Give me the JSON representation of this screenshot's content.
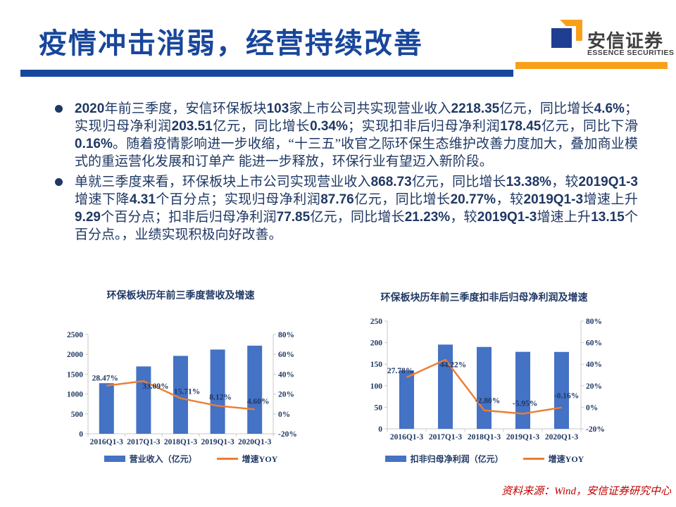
{
  "header": {
    "title": "疫情冲击消弱，经营持续改善",
    "logo": {
      "cn": "安信证券",
      "en": "ESSENCE SECURITIES"
    }
  },
  "colors": {
    "title_blue": "#18469B",
    "underline_blue": "#17479D",
    "accent_orange": "#F9A01B",
    "body_navy": "#1F3864",
    "bar_blue": "#4472C4",
    "line_orange": "#ED7D31",
    "axis_gray": "#C8C8C8",
    "footer_red": "#C00000",
    "logo_blue": "#1F3E92"
  },
  "bullets": [
    "2020年前三季度，安信环保板块103家上市公司共实现营业收入2218.35亿元，同比增长4.6%；实现归母净利润203.51亿元，同比增长0.34%；实现扣非后归母净利润178.45亿元，同比下滑0.16%。随着疫情影响进一步收缩，“十三五”收官之际环保生态维护改善力度加大，叠加商业模式的重运营化发展和订单产 能进一步释放，环保行业有望迈入新阶段。",
    "单就三季度来看，环保板块上市公司实现营业收入868.73亿元，同比增长13.38%，较2019Q1-3增速下降4.31个百分点；实现归母净利润87.76亿元，同比增长20.77%，较2019Q1-3增速上升9.29个百分点；扣非后归母净利润77.85亿元，同比增长21.23%，较2019Q1-3增速上升13.15个百分点。，业绩实现积极向好改善。"
  ],
  "chart_data": [
    {
      "type": "bar+line",
      "title": "环保板块历年前三季度营收及增速",
      "categories": [
        "2016Q1-3",
        "2017Q1-3",
        "2018Q1-3",
        "2019Q1-3",
        "2020Q1-3"
      ],
      "series": [
        {
          "name": "营业收入（亿元）",
          "type": "bar",
          "axis": "left",
          "color": "#4472C4",
          "values": [
            1273.6,
            1695.1,
            1961.4,
            2120.7,
            2218.35
          ]
        },
        {
          "name": "增速YOY",
          "type": "line",
          "axis": "right",
          "color": "#ED7D31",
          "values": [
            28.47,
            33.09,
            15.71,
            8.12,
            4.6
          ],
          "labels": [
            "28.47%",
            "33.09%",
            "15.71%",
            "8.12%",
            "4.60%"
          ]
        }
      ],
      "left_axis": {
        "min": 0,
        "max": 2500,
        "ticks": [
          0,
          500,
          1000,
          1500,
          2000,
          2500
        ],
        "suffix": ""
      },
      "right_axis": {
        "min": -20,
        "max": 80,
        "ticks": [
          -20,
          0,
          20,
          40,
          60,
          80
        ],
        "suffix": "%"
      },
      "legend_position": "bottom",
      "grid": false
    },
    {
      "type": "bar+line",
      "title": "环保板块历年前三季度扣非后归母净利润及增速",
      "categories": [
        "2016Q1-3",
        "2017Q1-3",
        "2018Q1-3",
        "2019Q1-3",
        "2020Q1-3"
      ],
      "series": [
        {
          "name": "扣非归母净利润（亿元）",
          "type": "bar",
          "axis": "left",
          "color": "#4472C4",
          "values": [
            135.6,
            195.5,
            190.0,
            178.7,
            178.45
          ]
        },
        {
          "name": "增速YOY",
          "type": "line",
          "axis": "right",
          "color": "#ED7D31",
          "values": [
            27.78,
            44.22,
            -2.8,
            -5.95,
            -0.16
          ],
          "labels": [
            "27.78%",
            "44.22%",
            "-2.80%",
            "-5.95%",
            "-0.16%"
          ]
        }
      ],
      "left_axis": {
        "min": 0,
        "max": 250,
        "ticks": [
          0,
          50,
          100,
          150,
          200,
          250
        ],
        "suffix": ""
      },
      "right_axis": {
        "min": -20,
        "max": 80,
        "ticks": [
          -20,
          0,
          20,
          40,
          60,
          80
        ],
        "suffix": "%"
      },
      "legend_position": "bottom",
      "grid": false
    }
  ],
  "footer": {
    "source": "资料来源：Wind，安信证券研究中心"
  }
}
